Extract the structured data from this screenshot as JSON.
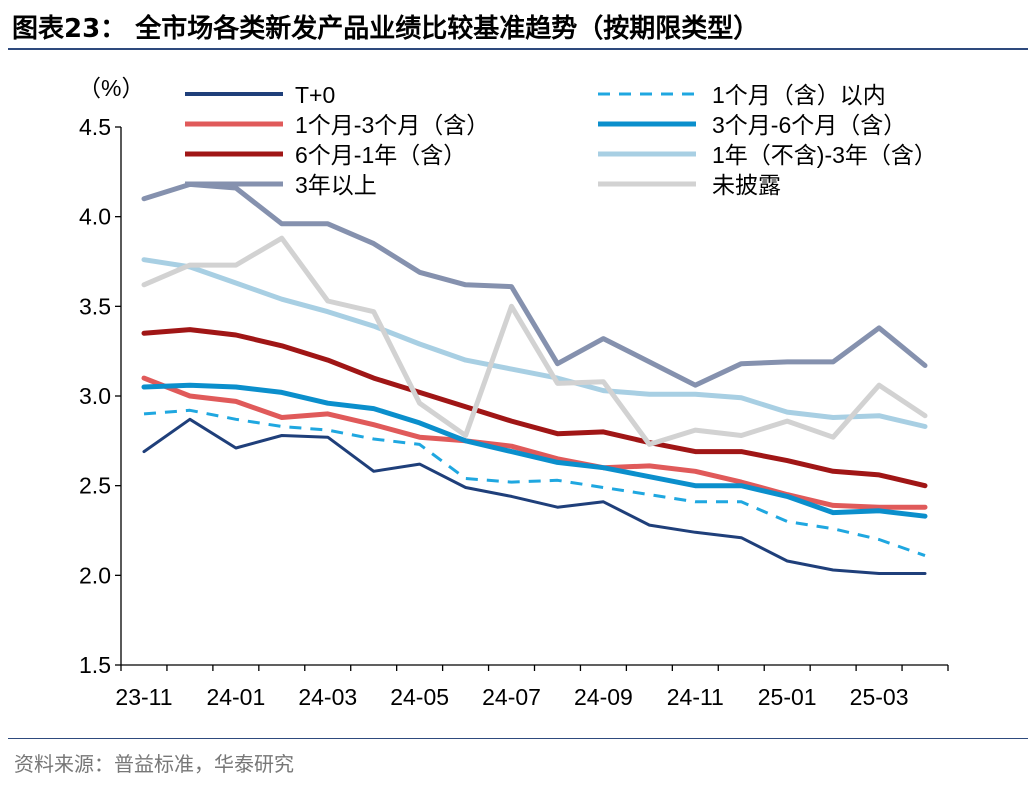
{
  "figure": {
    "title": "图表23：  全市场各类新发产品业绩比较基准趋势（按期限类型）",
    "source": "资料来源：普益标准，华泰研究"
  },
  "chart_data": {
    "type": "line",
    "unit_label": "（%）",
    "title": "",
    "xlabel": "",
    "ylabel": "",
    "ylim": [
      1.5,
      4.5
    ],
    "yticks": [
      "1.5",
      "2.0",
      "2.5",
      "3.0",
      "3.5",
      "4.0",
      "4.5"
    ],
    "x": [
      "23-11",
      "23-12",
      "24-01",
      "24-02",
      "24-03",
      "24-04",
      "24-05",
      "24-06",
      "24-07",
      "24-08",
      "24-09",
      "24-10",
      "24-11",
      "24-12",
      "25-01",
      "25-02",
      "25-03",
      "25-04"
    ],
    "xtick_labels": [
      "23-11",
      "24-01",
      "24-03",
      "24-05",
      "24-07",
      "24-09",
      "24-11",
      "25-01",
      "25-03"
    ],
    "grid": false,
    "legend_position": "top",
    "series": [
      {
        "name": "T+0",
        "color": "#1f3f7a",
        "style": "solid",
        "width": 3,
        "values": [
          2.69,
          2.87,
          2.71,
          2.78,
          2.77,
          2.58,
          2.62,
          2.49,
          2.44,
          2.38,
          2.41,
          2.28,
          2.24,
          2.21,
          2.08,
          2.03,
          2.01,
          2.01
        ]
      },
      {
        "name": "1个月（含）以内",
        "color": "#1fa7e0",
        "style": "dashed",
        "width": 3,
        "values": [
          2.9,
          2.92,
          2.87,
          2.83,
          2.81,
          2.76,
          2.73,
          2.54,
          2.52,
          2.53,
          2.49,
          2.45,
          2.41,
          2.41,
          2.3,
          2.26,
          2.2,
          2.11
        ]
      },
      {
        "name": "1个月-3个月（含）",
        "color": "#e05a5a",
        "style": "solid",
        "width": 5,
        "values": [
          3.1,
          3.0,
          2.97,
          2.88,
          2.9,
          2.84,
          2.77,
          2.75,
          2.72,
          2.65,
          2.6,
          2.61,
          2.58,
          2.52,
          2.45,
          2.39,
          2.38,
          2.38
        ]
      },
      {
        "name": "3个月-6个月（含）",
        "color": "#0b8fcc",
        "style": "solid",
        "width": 5,
        "values": [
          3.05,
          3.06,
          3.05,
          3.02,
          2.96,
          2.93,
          2.85,
          2.75,
          2.69,
          2.63,
          2.6,
          2.55,
          2.5,
          2.5,
          2.44,
          2.35,
          2.36,
          2.33
        ]
      },
      {
        "name": "6个月-1年（含）",
        "color": "#a01616",
        "style": "solid",
        "width": 5,
        "values": [
          3.35,
          3.37,
          3.34,
          3.28,
          3.2,
          3.1,
          3.02,
          2.94,
          2.86,
          2.79,
          2.8,
          2.74,
          2.69,
          2.69,
          2.64,
          2.58,
          2.56,
          2.5
        ]
      },
      {
        "name": "1年（不含)-3年（含）",
        "color": "#a8cfe3",
        "style": "solid",
        "width": 5,
        "values": [
          3.76,
          3.72,
          3.63,
          3.54,
          3.47,
          3.39,
          3.29,
          3.2,
          3.15,
          3.1,
          3.03,
          3.01,
          3.01,
          2.99,
          2.91,
          2.88,
          2.89,
          2.83
        ]
      },
      {
        "name": "3年以上",
        "color": "#8591ae",
        "style": "solid",
        "width": 5,
        "values": [
          4.1,
          4.18,
          4.16,
          3.96,
          3.96,
          3.85,
          3.69,
          3.62,
          3.61,
          3.18,
          3.32,
          3.19,
          3.06,
          3.18,
          3.19,
          3.19,
          3.38,
          3.17
        ]
      },
      {
        "name": "未披露",
        "color": "#d2d2d2",
        "style": "solid",
        "width": 5,
        "values": [
          3.62,
          3.73,
          3.73,
          3.88,
          3.53,
          3.47,
          2.96,
          2.78,
          3.5,
          3.07,
          3.08,
          2.73,
          2.81,
          2.78,
          2.86,
          2.77,
          3.06,
          2.89
        ]
      }
    ]
  }
}
